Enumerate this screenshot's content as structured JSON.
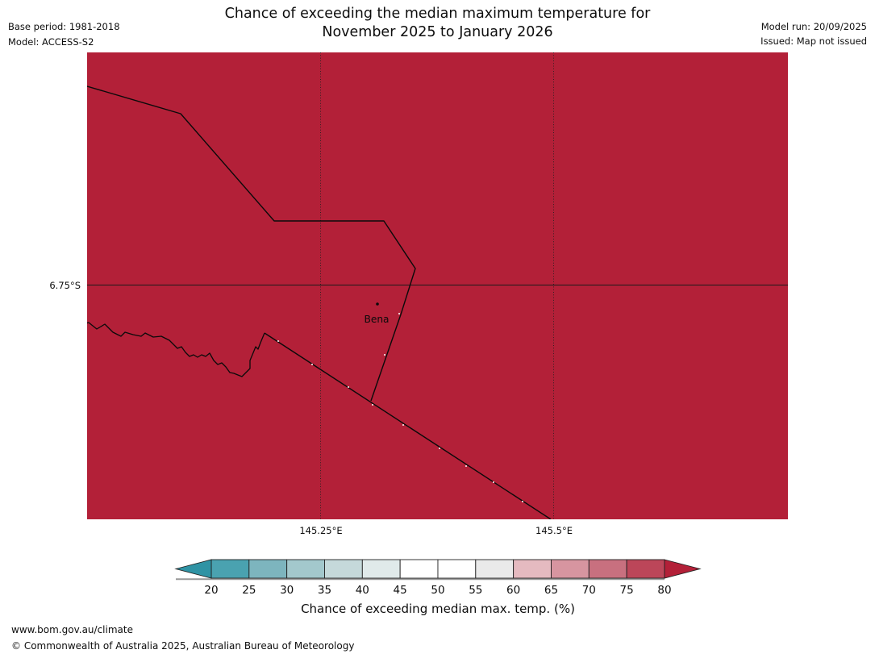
{
  "header": {
    "title_line1": "Chance of exceeding the median maximum temperature for",
    "title_line2": "November 2025 to January 2026",
    "base_period": "Base period: 1981-2018",
    "model": "Model: ACCESS-S2",
    "model_run": "Model run: 20/09/2025",
    "issued": "Issued: Map not issued"
  },
  "map": {
    "place_label": "Bena",
    "fill_color": "#b32038",
    "lat_label": "6.75°S",
    "lon_label_1": "145.25°E",
    "lon_label_2": "145.5°E"
  },
  "colorbar": {
    "caption": "Chance of exceeding median max. temp. (%)",
    "tick_labels": [
      "20",
      "25",
      "30",
      "35",
      "40",
      "45",
      "50",
      "55",
      "60",
      "65",
      "70",
      "75",
      "80"
    ],
    "left_arrow_color": "#2f93a4",
    "right_arrow_color": "#b32038",
    "segment_colors": [
      "#4aa2b0",
      "#7db5be",
      "#a3c8cc",
      "#c5d9da",
      "#e0eaea",
      "#ffffff",
      "#ffffff",
      "#eaeaea",
      "#e5bac0",
      "#d795a0",
      "#c8707f",
      "#bc4659"
    ]
  },
  "footer": {
    "url": "www.bom.gov.au/climate",
    "copyright": "© Commonwealth of Australia 2025, Australian Bureau of Meteorology"
  }
}
